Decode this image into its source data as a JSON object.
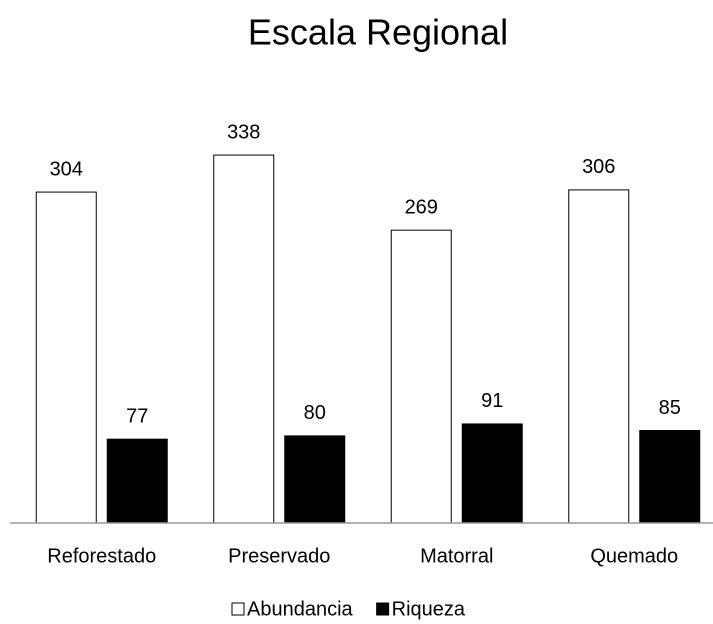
{
  "chart_data": {
    "type": "bar",
    "title": "Escala Regional",
    "categories": [
      "Reforestado",
      "Preservado",
      "Matorral",
      "Quemado"
    ],
    "series": [
      {
        "name": "Abundancia",
        "color": "#ffffff",
        "values": [
          304,
          338,
          269,
          306
        ]
      },
      {
        "name": "Riqueza",
        "color": "#000000",
        "values": [
          77,
          80,
          91,
          85
        ]
      }
    ],
    "ylim": [
      0,
      350
    ],
    "legend": "bottom"
  }
}
